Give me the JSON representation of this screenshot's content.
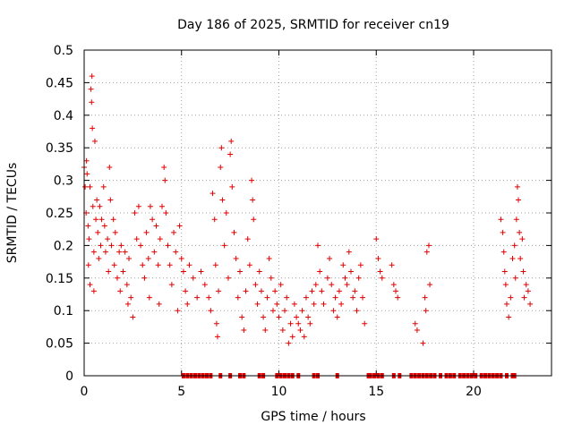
{
  "chart_data": {
    "type": "scatter",
    "title": "Day 186 of 2025, SRMTID for receiver cn19",
    "xlabel": "GPS time / hours",
    "ylabel": "SRMTID / TECUs",
    "xlim": [
      0,
      24
    ],
    "ylim": [
      0,
      0.5
    ],
    "grid": true,
    "marker": "plus",
    "color": "#e00000",
    "x_ticks": [
      {
        "value": 0,
        "label": "0"
      },
      {
        "value": 5,
        "label": "5"
      },
      {
        "value": 10,
        "label": "10"
      },
      {
        "value": 15,
        "label": "15"
      },
      {
        "value": 20,
        "label": "20"
      }
    ],
    "y_ticks": [
      {
        "value": 0,
        "label": "0"
      },
      {
        "value": 0.05,
        "label": "0.05"
      },
      {
        "value": 0.1,
        "label": "0.1"
      },
      {
        "value": 0.15,
        "label": "0.15"
      },
      {
        "value": 0.2,
        "label": "0.2"
      },
      {
        "value": 0.25,
        "label": "0.25"
      },
      {
        "value": 0.3,
        "label": "0.3"
      },
      {
        "value": 0.35,
        "label": "0.35"
      },
      {
        "value": 0.4,
        "label": "0.4"
      },
      {
        "value": 0.45,
        "label": "0.45"
      },
      {
        "value": 0.5,
        "label": "0.5"
      }
    ],
    "series": [
      {
        "name": "SRMTID",
        "points": [
          [
            0.0,
            0.32
          ],
          [
            0.05,
            0.29
          ],
          [
            0.1,
            0.25
          ],
          [
            0.12,
            0.33
          ],
          [
            0.15,
            0.31
          ],
          [
            0.2,
            0.23
          ],
          [
            0.22,
            0.17
          ],
          [
            0.25,
            0.21
          ],
          [
            0.3,
            0.29
          ],
          [
            0.3,
            0.14
          ],
          [
            0.35,
            0.44
          ],
          [
            0.38,
            0.42
          ],
          [
            0.4,
            0.46
          ],
          [
            0.42,
            0.38
          ],
          [
            0.45,
            0.26
          ],
          [
            0.5,
            0.19
          ],
          [
            0.5,
            0.13
          ],
          [
            0.55,
            0.36
          ],
          [
            0.6,
            0.24
          ],
          [
            0.65,
            0.27
          ],
          [
            0.7,
            0.22
          ],
          [
            0.75,
            0.18
          ],
          [
            0.8,
            0.26
          ],
          [
            0.85,
            0.2
          ],
          [
            0.9,
            0.24
          ],
          [
            1.0,
            0.29
          ],
          [
            1.05,
            0.23
          ],
          [
            1.1,
            0.19
          ],
          [
            1.2,
            0.21
          ],
          [
            1.25,
            0.16
          ],
          [
            1.3,
            0.32
          ],
          [
            1.35,
            0.27
          ],
          [
            1.4,
            0.2
          ],
          [
            1.5,
            0.24
          ],
          [
            1.55,
            0.17
          ],
          [
            1.6,
            0.22
          ],
          [
            1.7,
            0.15
          ],
          [
            1.8,
            0.19
          ],
          [
            1.85,
            0.13
          ],
          [
            1.9,
            0.2
          ],
          [
            2.0,
            0.16
          ],
          [
            2.1,
            0.19
          ],
          [
            2.2,
            0.14
          ],
          [
            2.25,
            0.11
          ],
          [
            2.3,
            0.18
          ],
          [
            2.4,
            0.12
          ],
          [
            2.5,
            0.09
          ],
          [
            2.6,
            0.25
          ],
          [
            2.7,
            0.21
          ],
          [
            2.8,
            0.26
          ],
          [
            2.9,
            0.2
          ],
          [
            3.0,
            0.17
          ],
          [
            3.1,
            0.15
          ],
          [
            3.2,
            0.22
          ],
          [
            3.3,
            0.18
          ],
          [
            3.35,
            0.12
          ],
          [
            3.4,
            0.26
          ],
          [
            3.5,
            0.24
          ],
          [
            3.6,
            0.19
          ],
          [
            3.7,
            0.23
          ],
          [
            3.8,
            0.17
          ],
          [
            3.85,
            0.11
          ],
          [
            3.9,
            0.21
          ],
          [
            4.0,
            0.26
          ],
          [
            4.1,
            0.32
          ],
          [
            4.15,
            0.3
          ],
          [
            4.2,
            0.25
          ],
          [
            4.3,
            0.2
          ],
          [
            4.4,
            0.17
          ],
          [
            4.5,
            0.14
          ],
          [
            4.6,
            0.22
          ],
          [
            4.7,
            0.19
          ],
          [
            4.8,
            0.1
          ],
          [
            4.9,
            0.23
          ],
          [
            5.0,
            0.18
          ],
          [
            5.1,
            0.16
          ],
          [
            5.2,
            0.13
          ],
          [
            5.3,
            0.11
          ],
          [
            5.4,
            0.17
          ],
          [
            5.6,
            0.15
          ],
          [
            5.8,
            0.12
          ],
          [
            6.0,
            0.16
          ],
          [
            6.2,
            0.14
          ],
          [
            6.4,
            0.12
          ],
          [
            6.5,
            0.1
          ],
          [
            6.6,
            0.28
          ],
          [
            6.7,
            0.24
          ],
          [
            6.75,
            0.17
          ],
          [
            6.8,
            0.08
          ],
          [
            6.85,
            0.06
          ],
          [
            6.9,
            0.13
          ],
          [
            7.0,
            0.32
          ],
          [
            7.05,
            0.35
          ],
          [
            7.1,
            0.27
          ],
          [
            7.2,
            0.2
          ],
          [
            7.3,
            0.25
          ],
          [
            7.4,
            0.15
          ],
          [
            7.5,
            0.34
          ],
          [
            7.55,
            0.36
          ],
          [
            7.6,
            0.29
          ],
          [
            7.7,
            0.22
          ],
          [
            7.8,
            0.18
          ],
          [
            7.9,
            0.12
          ],
          [
            8.0,
            0.16
          ],
          [
            8.1,
            0.09
          ],
          [
            8.2,
            0.07
          ],
          [
            8.3,
            0.13
          ],
          [
            8.4,
            0.21
          ],
          [
            8.5,
            0.17
          ],
          [
            8.6,
            0.3
          ],
          [
            8.65,
            0.27
          ],
          [
            8.7,
            0.24
          ],
          [
            8.8,
            0.14
          ],
          [
            8.9,
            0.11
          ],
          [
            9.0,
            0.16
          ],
          [
            9.1,
            0.13
          ],
          [
            9.2,
            0.09
          ],
          [
            9.3,
            0.07
          ],
          [
            9.4,
            0.12
          ],
          [
            9.5,
            0.18
          ],
          [
            9.6,
            0.15
          ],
          [
            9.7,
            0.1
          ],
          [
            9.8,
            0.13
          ],
          [
            9.9,
            0.11
          ],
          [
            10.0,
            0.09
          ],
          [
            10.1,
            0.14
          ],
          [
            10.2,
            0.07
          ],
          [
            10.3,
            0.1
          ],
          [
            10.4,
            0.12
          ],
          [
            10.5,
            0.05
          ],
          [
            10.6,
            0.08
          ],
          [
            10.7,
            0.06
          ],
          [
            10.8,
            0.11
          ],
          [
            10.9,
            0.09
          ],
          [
            11.0,
            0.08
          ],
          [
            11.1,
            0.07
          ],
          [
            11.2,
            0.1
          ],
          [
            11.3,
            0.06
          ],
          [
            11.4,
            0.12
          ],
          [
            11.5,
            0.09
          ],
          [
            11.6,
            0.08
          ],
          [
            11.7,
            0.13
          ],
          [
            11.8,
            0.11
          ],
          [
            11.9,
            0.14
          ],
          [
            12.0,
            0.2
          ],
          [
            12.1,
            0.16
          ],
          [
            12.2,
            0.13
          ],
          [
            12.3,
            0.11
          ],
          [
            12.5,
            0.15
          ],
          [
            12.6,
            0.18
          ],
          [
            12.7,
            0.14
          ],
          [
            12.8,
            0.1
          ],
          [
            12.9,
            0.12
          ],
          [
            13.0,
            0.09
          ],
          [
            13.1,
            0.13
          ],
          [
            13.2,
            0.11
          ],
          [
            13.3,
            0.17
          ],
          [
            13.4,
            0.15
          ],
          [
            13.5,
            0.14
          ],
          [
            13.6,
            0.19
          ],
          [
            13.7,
            0.16
          ],
          [
            13.8,
            0.12
          ],
          [
            13.9,
            0.13
          ],
          [
            14.0,
            0.1
          ],
          [
            14.1,
            0.15
          ],
          [
            14.2,
            0.17
          ],
          [
            14.3,
            0.12
          ],
          [
            14.4,
            0.08
          ],
          [
            15.0,
            0.21
          ],
          [
            15.1,
            0.18
          ],
          [
            15.2,
            0.16
          ],
          [
            15.3,
            0.15
          ],
          [
            15.8,
            0.17
          ],
          [
            15.9,
            0.14
          ],
          [
            16.0,
            0.13
          ],
          [
            16.1,
            0.12
          ],
          [
            17.0,
            0.08
          ],
          [
            17.1,
            0.07
          ],
          [
            17.4,
            0.05
          ],
          [
            17.5,
            0.12
          ],
          [
            17.55,
            0.1
          ],
          [
            17.6,
            0.19
          ],
          [
            17.7,
            0.2
          ],
          [
            17.75,
            0.14
          ],
          [
            21.4,
            0.24
          ],
          [
            21.5,
            0.22
          ],
          [
            21.55,
            0.19
          ],
          [
            21.6,
            0.16
          ],
          [
            21.65,
            0.14
          ],
          [
            21.7,
            0.11
          ],
          [
            21.8,
            0.09
          ],
          [
            21.9,
            0.12
          ],
          [
            22.1,
            0.2
          ],
          [
            22.2,
            0.24
          ],
          [
            22.25,
            0.29
          ],
          [
            22.3,
            0.27
          ],
          [
            22.35,
            0.22
          ],
          [
            22.4,
            0.18
          ],
          [
            22.5,
            0.21
          ],
          [
            22.55,
            0.16
          ],
          [
            22.6,
            0.12
          ],
          [
            22.7,
            0.14
          ],
          [
            22.8,
            0.13
          ],
          [
            22.9,
            0.11
          ],
          [
            22.0,
            0.18
          ],
          [
            22.15,
            0.15
          ]
        ]
      }
    ],
    "zero_value_times": [
      5.1,
      5.3,
      5.5,
      5.7,
      5.9,
      6.1,
      6.3,
      6.5,
      7.0,
      7.5,
      8.0,
      8.2,
      9.0,
      9.2,
      9.9,
      10.1,
      10.3,
      10.5,
      10.7,
      11.0,
      11.8,
      12.0,
      13.0,
      14.6,
      14.7,
      14.9,
      15.1,
      15.3,
      15.9,
      16.2,
      16.8,
      17.0,
      17.2,
      17.4,
      17.6,
      17.8,
      18.0,
      18.3,
      18.6,
      18.8,
      19.0,
      19.3,
      19.5,
      19.7,
      19.9,
      20.1,
      20.4,
      20.6,
      20.8,
      21.0,
      21.2,
      21.4,
      21.7,
      22.0,
      22.1
    ]
  }
}
